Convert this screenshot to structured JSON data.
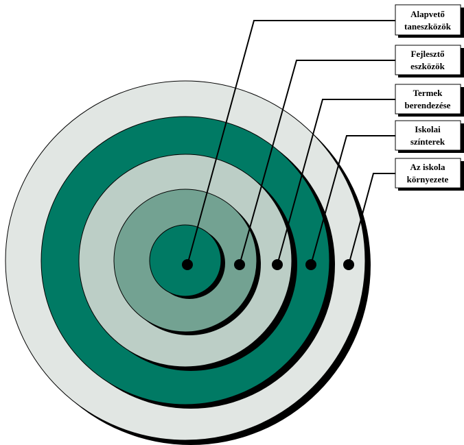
{
  "colors": {
    "ring_outer": "#e1e6e3",
    "ring_second": "#007a64",
    "ring_middle": "#bccec6",
    "ring_fourth": "#73a292",
    "ring_center": "#007a64",
    "shadow": "#000000",
    "outline": "#000000",
    "label_fill": "#ffffff"
  },
  "labels": [
    {
      "line1": "Alapvető",
      "line2": "taneszközök"
    },
    {
      "line1": "Fejlesztő",
      "line2": "eszközök"
    },
    {
      "line1": "Termek",
      "line2": "berendezése"
    },
    {
      "line1": "Iskolai",
      "line2": "színterek"
    },
    {
      "line1": "Az iskola",
      "line2": "környezete"
    }
  ]
}
